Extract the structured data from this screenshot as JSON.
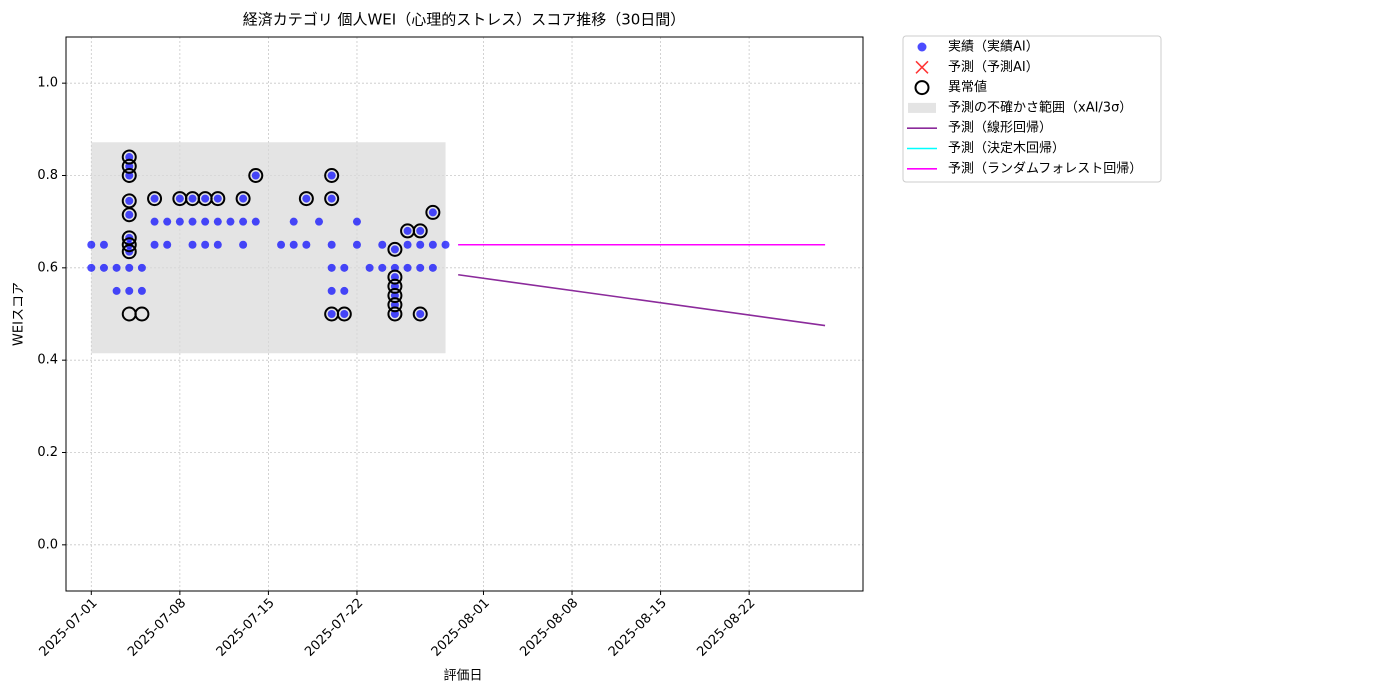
{
  "chart_data": {
    "type": "scatter",
    "title": "経済カテゴリ 個人WEI（心理的ストレス）スコア推移（30日間）",
    "x_label": "評価日",
    "y_label": "WEIスコア",
    "xlim": [
      "2025-06-29",
      "2025-08-31"
    ],
    "ylim": [
      -0.1,
      1.1
    ],
    "xticks": [
      "2025-07-01",
      "2025-07-08",
      "2025-07-15",
      "2025-07-22",
      "2025-08-01",
      "2025-08-08",
      "2025-08-15",
      "2025-08-22"
    ],
    "yticks": [
      {
        "value": 0,
        "label": "0.0"
      },
      0.2,
      0.4,
      0.6,
      0.8,
      {
        "value": 1,
        "label": "1.0"
      }
    ],
    "grid": true,
    "legend": "outside-right",
    "series": [
      {
        "name": "実績（実績AI）",
        "kind": "dot",
        "color": "#0000ff",
        "x": [
          "2025-07-01",
          "2025-07-01",
          "2025-07-02",
          "2025-07-02",
          "2025-07-03",
          "2025-07-03",
          "2025-07-04",
          "2025-07-04",
          "2025-07-04",
          "2025-07-04",
          "2025-07-04",
          "2025-07-04",
          "2025-07-04",
          "2025-07-04",
          "2025-07-04",
          "2025-07-04",
          "2025-07-05",
          "2025-07-05",
          "2025-07-06",
          "2025-07-06",
          "2025-07-06",
          "2025-07-07",
          "2025-07-07",
          "2025-07-08",
          "2025-07-08",
          "2025-07-09",
          "2025-07-09",
          "2025-07-09",
          "2025-07-10",
          "2025-07-10",
          "2025-07-10",
          "2025-07-11",
          "2025-07-11",
          "2025-07-11",
          "2025-07-12",
          "2025-07-13",
          "2025-07-13",
          "2025-07-13",
          "2025-07-14",
          "2025-07-14",
          "2025-07-16",
          "2025-07-17",
          "2025-07-17",
          "2025-07-18",
          "2025-07-18",
          "2025-07-19",
          "2025-07-20",
          "2025-07-20",
          "2025-07-20",
          "2025-07-20",
          "2025-07-20",
          "2025-07-20",
          "2025-07-21",
          "2025-07-21",
          "2025-07-21",
          "2025-07-22",
          "2025-07-22",
          "2025-07-23",
          "2025-07-24",
          "2025-07-24",
          "2025-07-25",
          "2025-07-25",
          "2025-07-25",
          "2025-07-25",
          "2025-07-25",
          "2025-07-25",
          "2025-07-25",
          "2025-07-26",
          "2025-07-26",
          "2025-07-26",
          "2025-07-27",
          "2025-07-27",
          "2025-07-27",
          "2025-07-27",
          "2025-07-28",
          "2025-07-28",
          "2025-07-28",
          "2025-07-29"
        ],
        "values": [
          0.65,
          0.6,
          0.65,
          0.6,
          0.6,
          0.55,
          0.84,
          0.82,
          0.8,
          0.745,
          0.715,
          0.665,
          0.65,
          0.635,
          0.55,
          0.6,
          0.6,
          0.55,
          0.65,
          0.75,
          0.7,
          0.7,
          0.65,
          0.7,
          0.75,
          0.75,
          0.65,
          0.7,
          0.65,
          0.75,
          0.7,
          0.65,
          0.7,
          0.75,
          0.7,
          0.65,
          0.75,
          0.7,
          0.8,
          0.7,
          0.65,
          0.7,
          0.65,
          0.75,
          0.65,
          0.7,
          0.8,
          0.75,
          0.65,
          0.6,
          0.55,
          0.5,
          0.5,
          0.55,
          0.6,
          0.7,
          0.65,
          0.6,
          0.65,
          0.6,
          0.6,
          0.58,
          0.56,
          0.54,
          0.52,
          0.5,
          0.64,
          0.68,
          0.65,
          0.6,
          0.68,
          0.65,
          0.6,
          0.5,
          0.65,
          0.6,
          0.72,
          0.65
        ]
      },
      {
        "name": "予測（予測AI）",
        "kind": "cross",
        "color": "#ff0000",
        "x": [],
        "values": []
      },
      {
        "name": "異常値",
        "kind": "ring",
        "color": "#000000",
        "x": [
          "2025-07-04",
          "2025-07-04",
          "2025-07-04",
          "2025-07-04",
          "2025-07-04",
          "2025-07-04",
          "2025-07-04",
          "2025-07-04",
          "2025-07-04",
          "2025-07-05",
          "2025-07-06",
          "2025-07-08",
          "2025-07-09",
          "2025-07-10",
          "2025-07-11",
          "2025-07-13",
          "2025-07-14",
          "2025-07-18",
          "2025-07-20",
          "2025-07-20",
          "2025-07-20",
          "2025-07-21",
          "2025-07-25",
          "2025-07-25",
          "2025-07-25",
          "2025-07-25",
          "2025-07-25",
          "2025-07-25",
          "2025-07-26",
          "2025-07-27",
          "2025-07-27",
          "2025-07-28"
        ],
        "values": [
          0.84,
          0.82,
          0.8,
          0.745,
          0.715,
          0.665,
          0.65,
          0.635,
          0.5,
          0.5,
          0.75,
          0.75,
          0.75,
          0.75,
          0.75,
          0.75,
          0.8,
          0.75,
          0.8,
          0.75,
          0.5,
          0.5,
          0.58,
          0.56,
          0.54,
          0.52,
          0.5,
          0.64,
          0.68,
          0.68,
          0.5,
          0.72
        ]
      },
      {
        "name": "予測の不確かさ範囲（xAI/3σ）",
        "kind": "band",
        "color": "#d9d9d9",
        "x": [
          "2025-07-01",
          "2025-07-29"
        ],
        "lower": [
          0.415,
          0.415
        ],
        "upper": [
          0.872,
          0.872
        ]
      },
      {
        "name": "予測（線形回帰）",
        "kind": "line",
        "color": "#8b2a9b",
        "x": [
          "2025-07-30",
          "2025-08-28"
        ],
        "values": [
          0.585,
          0.475
        ]
      },
      {
        "name": "予測（決定木回帰）",
        "kind": "line",
        "color": "#00ffff",
        "x": [
          "2025-07-30",
          "2025-08-28"
        ],
        "values": [
          0.65,
          0.65
        ]
      },
      {
        "name": "予測（ランダムフォレスト回帰）",
        "kind": "line",
        "color": "#ff00ff",
        "x": [
          "2025-07-30",
          "2025-08-28"
        ],
        "values": [
          0.65,
          0.65
        ]
      }
    ]
  }
}
